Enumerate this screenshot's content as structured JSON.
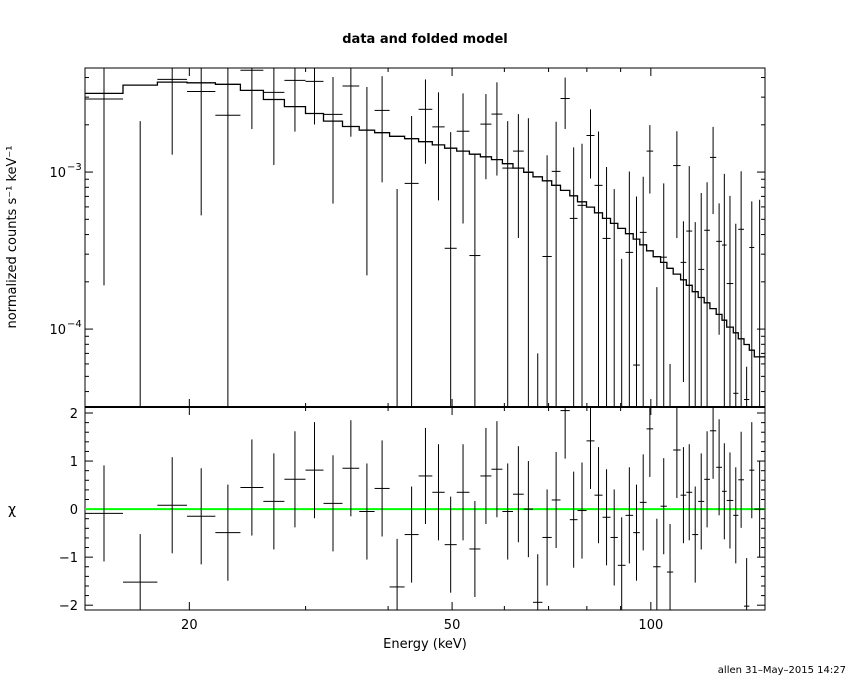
{
  "chart_data": [
    {
      "panel": "top",
      "type": "line",
      "title": "data and folded model",
      "ylabel": "normalized counts s⁻¹ keV⁻¹",
      "xlabel": "",
      "xscale": "log",
      "yscale": "log",
      "xlim": [
        13.9,
        148.9
      ],
      "ylim": [
        3.19e-05,
        0.0046
      ],
      "x_ticks": [
        {
          "value": 20,
          "label": "20"
        },
        {
          "value": 50,
          "label": "50"
        },
        {
          "value": 100,
          "label": "100"
        }
      ],
      "y_ticks": [
        {
          "value": 0.001,
          "base": "10",
          "exp": "−3"
        },
        {
          "value": 0.0001,
          "base": "10",
          "exp": "−4"
        }
      ],
      "grid": false,
      "colors": {
        "data": "#000000",
        "model": "#000000"
      },
      "bins_e_lo": [
        13.9,
        15.87,
        17.89,
        19.84,
        21.9,
        23.9,
        25.89,
        27.86,
        29.99,
        31.93,
        34.12,
        36.17,
        38.16,
        40.21,
        42.37,
        44.49,
        46.67,
        48.72,
        50.81,
        53.11,
        55.19,
        57.36,
        59.59,
        61.84,
        64.19,
        66.31,
        68.52,
        70.78,
        72.97,
        75.38,
        77.44,
        79.9,
        82.16,
        84.5,
        86.89,
        89.13,
        91.55,
        94.02,
        96.23,
        98.52,
        100.81,
        103.45,
        105.76,
        108.1,
        110.93,
        113.15,
        115.52,
        117.96,
        120.46,
        122.89,
        125.61,
        128.16,
        130.27,
        133.3,
        135.66,
        138.37,
        140.97,
        143.43
      ],
      "bins_e_hi": [
        15.87,
        17.89,
        19.84,
        21.9,
        23.9,
        25.89,
        27.86,
        29.99,
        31.93,
        34.12,
        36.17,
        38.16,
        40.21,
        42.37,
        44.49,
        46.67,
        48.72,
        50.81,
        53.11,
        55.19,
        57.36,
        59.59,
        61.84,
        64.19,
        66.31,
        68.52,
        70.78,
        72.97,
        75.38,
        77.44,
        79.9,
        82.16,
        84.5,
        86.89,
        89.13,
        91.55,
        94.02,
        96.23,
        98.52,
        100.81,
        103.45,
        105.76,
        108.1,
        110.93,
        113.15,
        115.52,
        117.96,
        120.46,
        122.89,
        125.61,
        128.16,
        130.27,
        133.3,
        135.66,
        138.37,
        140.97,
        143.43,
        148.9
      ],
      "data_y": [
        0.00292,
        -0.00072,
        0.00389,
        0.00326,
        0.0023,
        0.00445,
        0.00322,
        0.00384,
        0.00378,
        0.00233,
        0.00353,
        0.00185,
        0.00247,
        -0.00069,
        0.000847,
        0.00251,
        0.00194,
        0.000327,
        0.00182,
        0.000294,
        0.00202,
        0.00234,
        0.00106,
        0.00136,
        0.001,
        -0.00085,
        0.00029,
        0.00101,
        0.00294,
        0.000507,
        0.000614,
        0.00171,
        0.000823,
        0.000378,
        2.9e-05,
        -0.00068,
        0.000308,
        5.9e-05,
        0.000413,
        0.00136,
        -0.000335,
        0.000287,
        -0.00054,
        0.0011,
        0.000266,
        0.000421,
        -0.00017,
        0.00024,
        0.000426,
        0.00124,
        0.000362,
        0.000343,
        0.000195,
        3.9e-05,
        0.000432,
        3.56e-05,
        0.000331,
        6.65e-05
      ],
      "data_err": [
        0.00273,
        0.00283,
        0.0026,
        0.00273,
        0.00269,
        0.00257,
        0.00211,
        0.00203,
        0.00177,
        0.0017,
        0.00185,
        0.00163,
        0.00161,
        0.00147,
        0.00143,
        0.00138,
        0.00128,
        0.00147,
        0.00135,
        0.001,
        0.00112,
        0.00139,
        0.00105,
        0.00098,
        0.0012,
        0.00092,
        0.00099,
        0.00108,
        0.00106,
        0.00093,
        0.0009,
        0.0008,
        0.00099,
        0.0007,
        0.00075,
        0.00096,
        0.0007,
        0.00064,
        0.00052,
        0.00063,
        0.00052,
        0.00056,
        0.0006,
        0.00072,
        0.00022,
        0.00067,
        0.00065,
        0.000495,
        0.000435,
        0.0007,
        0.00027,
        0.00063,
        0.00051,
        0.00043,
        0.00058,
        2.2e-05,
        0.00032,
        0.0006
      ],
      "model_y": [
        0.00317,
        0.00358,
        0.00374,
        0.0037,
        0.00362,
        0.00331,
        0.0029,
        0.00261,
        0.00236,
        0.00211,
        0.00195,
        0.00185,
        0.00178,
        0.00169,
        0.00163,
        0.00156,
        0.00149,
        0.00142,
        0.00136,
        0.0013,
        0.00125,
        0.0012,
        0.00113,
        0.00106,
        0.000996,
        0.000933,
        0.00088,
        0.000823,
        0.000764,
        0.000706,
        0.000647,
        0.000598,
        0.00055,
        0.000507,
        0.000471,
        0.000438,
        0.000405,
        0.000374,
        0.000344,
        0.000315,
        0.000289,
        0.000266,
        0.000244,
        0.000224,
        0.000206,
        0.00019,
        0.000173,
        0.000159,
        0.000147,
        0.000135,
        0.000124,
        0.000114,
        0.000103,
        9.47e-05,
        8.67e-05,
        7.98e-05,
        7.34e-05,
        6.65e-05
      ]
    },
    {
      "panel": "bottom",
      "type": "scatter",
      "ylabel": "χ",
      "xlabel": "Energy (keV)",
      "xscale": "log",
      "xlim": [
        13.9,
        148.9
      ],
      "ylim": [
        -2.1,
        2.125
      ],
      "x_ticks": [
        {
          "value": 20,
          "label": "20"
        },
        {
          "value": 50,
          "label": "50"
        },
        {
          "value": 100,
          "label": "100"
        }
      ],
      "y_ticks": [
        {
          "value": 2,
          "label": "2"
        },
        {
          "value": 1,
          "label": "1"
        },
        {
          "value": 0,
          "label": "0"
        },
        {
          "value": -1,
          "label": "−1"
        },
        {
          "value": -2,
          "label": "−2"
        }
      ],
      "grid": false,
      "zero_line_color": "#00ff00",
      "residual_err": 1,
      "chi": [
        -0.09,
        -1.52,
        0.08,
        -0.15,
        -0.49,
        0.45,
        0.16,
        0.62,
        0.81,
        0.12,
        0.85,
        -0.05,
        0.43,
        -1.62,
        -0.53,
        0.69,
        0.35,
        -0.74,
        0.35,
        -0.83,
        0.69,
        0.83,
        -0.05,
        0.31,
        0.0,
        -1.94,
        -0.59,
        0.19,
        2.05,
        -0.22,
        -0.03,
        1.42,
        0.29,
        -0.17,
        -0.59,
        -1.17,
        -0.13,
        -0.49,
        0.14,
        1.67,
        -1.2,
        0.06,
        -1.31,
        1.23,
        0.29,
        0.35,
        -0.53,
        0.16,
        0.62,
        1.63,
        0.87,
        0.37,
        0.18,
        -0.13,
        0.61,
        -2.02,
        0.81,
        0.0
      ]
    }
  ],
  "footer": {
    "stamp": "allen 31–May–2015 14:27"
  }
}
